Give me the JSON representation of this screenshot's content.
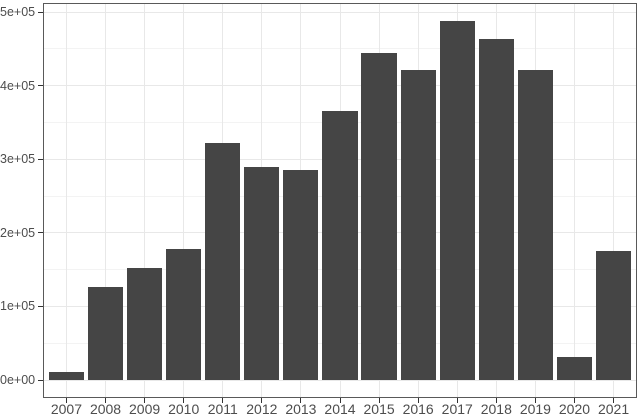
{
  "chart_data": {
    "type": "bar",
    "title": "",
    "xlabel": "",
    "ylabel": "",
    "legend": "none",
    "categories": [
      "2007",
      "2008",
      "2009",
      "2010",
      "2011",
      "2012",
      "2013",
      "2014",
      "2015",
      "2016",
      "2017",
      "2018",
      "2019",
      "2020",
      "2021"
    ],
    "values": [
      11000,
      127000,
      152000,
      178000,
      322000,
      289000,
      285000,
      366000,
      445000,
      421000,
      488000,
      464000,
      422000,
      31000,
      175000
    ],
    "ylim": [
      0,
      500000
    ],
    "y_axis": {
      "tick_values": [
        0,
        100000,
        200000,
        300000,
        400000,
        500000
      ],
      "tick_labels": [
        "0e+00",
        "1e+05",
        "2e+05",
        "3e+05",
        "4e+05",
        "5e+05"
      ],
      "minor_tick_values": [
        50000,
        150000,
        250000,
        350000,
        450000
      ]
    },
    "grid": "horizontal major and minor lines; vertical major lines at each category",
    "colors": {
      "bar_fill": "#454545",
      "panel_border": "#595959",
      "grid_major": "#e8e8e8",
      "grid_minor": "#f3f3f3",
      "tick_mark": "#333333",
      "tick_label": "#4d4d4d",
      "background": "#ffffff"
    }
  }
}
